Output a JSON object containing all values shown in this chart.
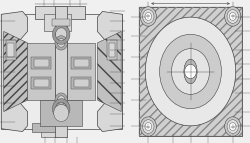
{
  "bg_color": "#f0f0f0",
  "lc": "#444444",
  "white": "#ffffff",
  "light_gray": "#d8d8d8",
  "mid_gray": "#b8b8b8",
  "dark_gray": "#888888",
  "hatch_gray": "#999999",
  "very_light": "#ececec"
}
